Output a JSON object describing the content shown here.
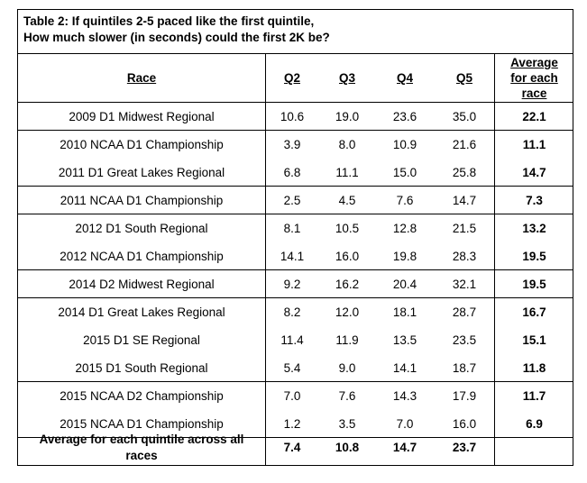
{
  "caption": {
    "line1": "Table 2: If quintiles 2-5 paced like the first quintile,",
    "line2": "How much slower (in seconds) could the first 2K be?"
  },
  "headers": {
    "race": "Race",
    "q2": "Q2",
    "q3": "Q3",
    "q4": "Q4",
    "q5": "Q5",
    "avg": "Average for each race"
  },
  "rows": [
    {
      "race": "2009 D1 Midwest Regional",
      "q2": "10.6",
      "q3": "19.0",
      "q4": "23.6",
      "q5": "35.0",
      "avg": "22.1"
    },
    {
      "race": "2010 NCAA D1 Championship",
      "q2": "3.9",
      "q3": "8.0",
      "q4": "10.9",
      "q5": "21.6",
      "avg": "11.1"
    },
    {
      "race": "2011 D1 Great Lakes Regional",
      "q2": "6.8",
      "q3": "11.1",
      "q4": "15.0",
      "q5": "25.8",
      "avg": "14.7"
    },
    {
      "race": "2011 NCAA D1 Championship",
      "q2": "2.5",
      "q3": "4.5",
      "q4": "7.6",
      "q5": "14.7",
      "avg": "7.3"
    },
    {
      "race": "2012 D1 South Regional",
      "q2": "8.1",
      "q3": "10.5",
      "q4": "12.8",
      "q5": "21.5",
      "avg": "13.2"
    },
    {
      "race": "2012 NCAA D1 Championship",
      "q2": "14.1",
      "q3": "16.0",
      "q4": "19.8",
      "q5": "28.3",
      "avg": "19.5"
    },
    {
      "race": "2014 D2 Midwest Regional",
      "q2": "9.2",
      "q3": "16.2",
      "q4": "20.4",
      "q5": "32.1",
      "avg": "19.5"
    },
    {
      "race": "2014 D1 Great Lakes Regional",
      "q2": "8.2",
      "q3": "12.0",
      "q4": "18.1",
      "q5": "28.7",
      "avg": "16.7"
    },
    {
      "race": "2015 D1 SE Regional",
      "q2": "11.4",
      "q3": "11.9",
      "q4": "13.5",
      "q5": "23.5",
      "avg": "15.1"
    },
    {
      "race": "2015 D1 South Regional",
      "q2": "5.4",
      "q3": "9.0",
      "q4": "14.1",
      "q5": "18.7",
      "avg": "11.8"
    },
    {
      "race": "2015 NCAA D2 Championship",
      "q2": "7.0",
      "q3": "7.6",
      "q4": "14.3",
      "q5": "17.9",
      "avg": "11.7"
    },
    {
      "race": "2015 NCAA D1 Championship",
      "q2": "1.2",
      "q3": "3.5",
      "q4": "7.0",
      "q5": "16.0",
      "avg": "6.9"
    }
  ],
  "footer": {
    "label": "Average for each quintile across all races",
    "q2": "7.4",
    "q3": "10.8",
    "q4": "14.7",
    "q5": "23.7"
  }
}
